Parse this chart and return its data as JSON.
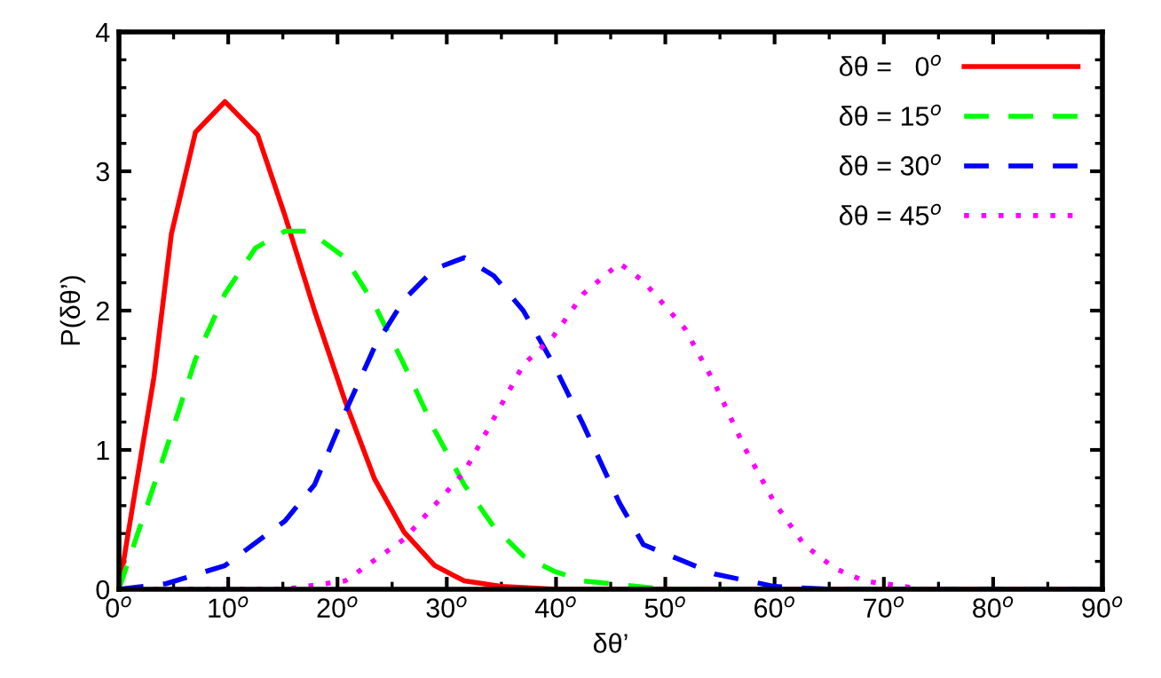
{
  "chart_data": {
    "type": "line",
    "xlabel": "δθ’",
    "ylabel": "P(δθ’)",
    "xlim": [
      0,
      90
    ],
    "ylim": [
      0,
      4
    ],
    "xticks": [
      {
        "value": 0,
        "label": "0$^{o}$"
      },
      {
        "value": 10,
        "label": "10$^{o}$"
      },
      {
        "value": 20,
        "label": "20$^{o}$"
      },
      {
        "value": 30,
        "label": "30$^{o}$"
      },
      {
        "value": 40,
        "label": "40$^{o}$"
      },
      {
        "value": 50,
        "label": "50$^{o}$"
      },
      {
        "value": 60,
        "label": "60$^{o}$"
      },
      {
        "value": 70,
        "label": "70$^{o}$"
      },
      {
        "value": 80,
        "label": "80$^{o}$"
      },
      {
        "value": 90,
        "label": "90$^{o}$"
      }
    ],
    "yticks": [
      0,
      1,
      2,
      3,
      4
    ],
    "grid": false,
    "legend": "top right",
    "marker": "none",
    "series": [
      {
        "name": "δθ =   0$^{o}$",
        "color": "#ff0000",
        "line_style": "solid",
        "x": [
          0,
          3.2,
          4.8,
          7.0,
          9.7,
          12.7,
          15.2,
          17.9,
          20.7,
          23.4,
          26.1,
          28.9,
          31.6,
          35,
          40,
          90
        ],
        "values": [
          0,
          1.52,
          2.55,
          3.28,
          3.5,
          3.26,
          2.68,
          2.0,
          1.35,
          0.79,
          0.41,
          0.17,
          0.06,
          0.02,
          0,
          0
        ]
      },
      {
        "name": "δθ = 15$^{o}$",
        "color": "#00ff00",
        "line_style": "dashed",
        "x": [
          0,
          2.1,
          4.3,
          7.0,
          9.7,
          12.5,
          15.2,
          17.4,
          20.7,
          23.4,
          26.1,
          28.9,
          31.6,
          34.3,
          37.0,
          39.8,
          42.5,
          50,
          90
        ],
        "values": [
          0,
          0.49,
          1.0,
          1.65,
          2.12,
          2.45,
          2.57,
          2.57,
          2.38,
          2.04,
          1.61,
          1.14,
          0.75,
          0.45,
          0.24,
          0.13,
          0.06,
          0,
          0
        ]
      },
      {
        "name": "δθ = 30$^{o}$",
        "color": "#0000ff",
        "line_style": "dashed",
        "x": [
          0,
          4.3,
          9.7,
          15.2,
          17.9,
          20.7,
          23.4,
          26.1,
          28.9,
          31.6,
          34.3,
          37.0,
          39.8,
          42.5,
          45.8,
          48.0,
          54.5,
          60,
          65,
          90
        ],
        "values": [
          0,
          0.04,
          0.17,
          0.49,
          0.75,
          1.27,
          1.74,
          2.08,
          2.3,
          2.38,
          2.25,
          2.0,
          1.61,
          1.18,
          0.62,
          0.32,
          0.11,
          0.02,
          0,
          0
        ]
      },
      {
        "name": "δθ = 45$^{o}$",
        "color": "#ff00ff",
        "line_style": "dotted",
        "x": [
          0,
          15.2,
          20.7,
          26.1,
          31.6,
          37.0,
          39.8,
          42.5,
          45.8,
          48.0,
          51.8,
          54.5,
          57.3,
          60.0,
          62.7,
          65.5,
          68.2,
          73.7,
          78,
          90
        ],
        "values": [
          0,
          0,
          0.06,
          0.36,
          0.84,
          1.61,
          1.82,
          2.12,
          2.34,
          2.21,
          1.87,
          1.48,
          1.01,
          0.62,
          0.32,
          0.15,
          0.06,
          0,
          0,
          0
        ]
      }
    ]
  }
}
